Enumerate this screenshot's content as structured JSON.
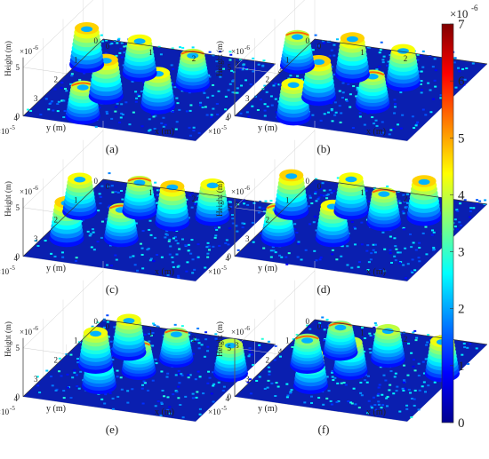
{
  "chart_data": [
    {
      "type": "surface3d",
      "panel_label": "(a)",
      "xlabel": "x (m)",
      "ylabel": "y (m)",
      "zlabel": "Height (m)",
      "z_exponent": "×10",
      "z_exponent_power": "-6",
      "xy_exponent": "×10",
      "xy_exponent_power": "-5",
      "x_ticks": [
        "0",
        "1",
        "2",
        "3",
        "4"
      ],
      "y_ticks": [
        "0",
        "1",
        "2",
        "3",
        "4"
      ],
      "z_ticks": [
        "0",
        "5"
      ],
      "rings": [
        [
          0.2,
          1.25
        ],
        [
          1.45,
          1.3
        ],
        [
          2.75,
          1.45
        ],
        [
          1.25,
          2.55
        ],
        [
          2.5,
          2.65
        ],
        [
          1.2,
          3.6
        ]
      ],
      "variant": 0
    },
    {
      "type": "surface3d",
      "panel_label": "(b)",
      "xlabel": "x (m)",
      "ylabel": "y (m)",
      "zlabel": "Height (m)",
      "z_exponent": "×10",
      "z_exponent_power": "-6",
      "xy_exponent": "×10",
      "xy_exponent_power": "-5",
      "x_ticks": [
        "0",
        "1",
        "2",
        "3",
        "4"
      ],
      "y_ticks": [
        "0",
        "1",
        "2",
        "3",
        "4"
      ],
      "z_ticks": [
        "0",
        "5"
      ],
      "rings": [
        [
          0.2,
          1.3
        ],
        [
          1.5,
          1.35
        ],
        [
          2.7,
          1.4
        ],
        [
          1.3,
          2.6
        ],
        [
          2.55,
          2.6
        ],
        [
          1.2,
          3.65
        ]
      ],
      "variant": 1
    },
    {
      "type": "surface3d",
      "panel_label": "(c)",
      "xlabel": "x (m)",
      "ylabel": "y (m)",
      "zlabel": "Height (m)",
      "z_exponent": "×10",
      "z_exponent_power": "-6",
      "xy_exponent": "×10",
      "xy_exponent_power": "-5",
      "x_ticks": [
        "0",
        "1",
        "2",
        "3",
        "4"
      ],
      "y_ticks": [
        "0",
        "1",
        "2",
        "3",
        "4"
      ],
      "z_ticks": [
        "0",
        "5"
      ],
      "rings": [
        [
          0.5,
          2.9
        ],
        [
          1.6,
          2.55
        ],
        [
          2.3,
          1.5
        ],
        [
          1.4,
          1.2
        ],
        [
          3.0,
          1.0
        ],
        [
          0.2,
          1.6
        ]
      ],
      "variant": 2
    },
    {
      "type": "surface3d",
      "panel_label": "(d)",
      "xlabel": "x (m)",
      "ylabel": "y (m)",
      "zlabel": "Height (m)",
      "z_exponent": "×10",
      "z_exponent_power": "-6",
      "xy_exponent": "×10",
      "xy_exponent_power": "-5",
      "x_ticks": [
        "0",
        "1",
        "2",
        "3",
        "4"
      ],
      "y_ticks": [
        "0",
        "1",
        "2",
        "3",
        "4"
      ],
      "z_ticks": [
        "0",
        "5"
      ],
      "rings": [
        [
          0.5,
          2.9
        ],
        [
          1.6,
          2.55
        ],
        [
          2.3,
          1.5
        ],
        [
          1.4,
          1.2
        ],
        [
          3.0,
          1.0
        ],
        [
          0.2,
          1.6
        ]
      ],
      "variant": 3
    },
    {
      "type": "surface3d",
      "panel_label": "(e)",
      "xlabel": "x (m)",
      "ylabel": "y (m)",
      "zlabel": "Height (m)",
      "z_exponent": "×10",
      "z_exponent_power": "-6",
      "xy_exponent": "×10",
      "xy_exponent_power": "-5",
      "x_ticks": [
        "0",
        "1",
        "2",
        "3",
        "4"
      ],
      "y_ticks": [
        "0",
        "1",
        "2",
        "3",
        "4"
      ],
      "z_ticks": [
        "0",
        "5"
      ],
      "rings": [
        [
          1.3,
          3.0
        ],
        [
          1.8,
          2.1
        ],
        [
          2.3,
          1.3
        ],
        [
          0.8,
          2.1
        ],
        [
          1.2,
          1.3
        ],
        [
          3.7,
          1.6
        ]
      ],
      "variant": 4
    },
    {
      "type": "surface3d",
      "panel_label": "(f)",
      "xlabel": "x (m)",
      "ylabel": "y (m)",
      "zlabel": "Height (m)",
      "z_exponent": "×10",
      "z_exponent_power": "-6",
      "xy_exponent": "×10",
      "xy_exponent_power": "-5",
      "x_ticks": [
        "0",
        "1",
        "2",
        "3",
        "4"
      ],
      "y_ticks": [
        "0",
        "1",
        "2",
        "3",
        "4"
      ],
      "z_ticks": [
        "0",
        "5"
      ],
      "rings": [
        [
          1.3,
          3.0
        ],
        [
          1.8,
          2.1
        ],
        [
          2.3,
          1.3
        ],
        [
          0.8,
          2.1
        ],
        [
          1.2,
          1.3
        ],
        [
          3.7,
          1.6
        ]
      ],
      "variant": 5
    }
  ],
  "colorbar": {
    "exponent": "×10",
    "exponent_power": "-6",
    "ticks": [
      "0",
      "1",
      "2",
      "3",
      "4",
      "5",
      "6",
      "7"
    ],
    "range": [
      0,
      7
    ],
    "colormap": "jet"
  }
}
